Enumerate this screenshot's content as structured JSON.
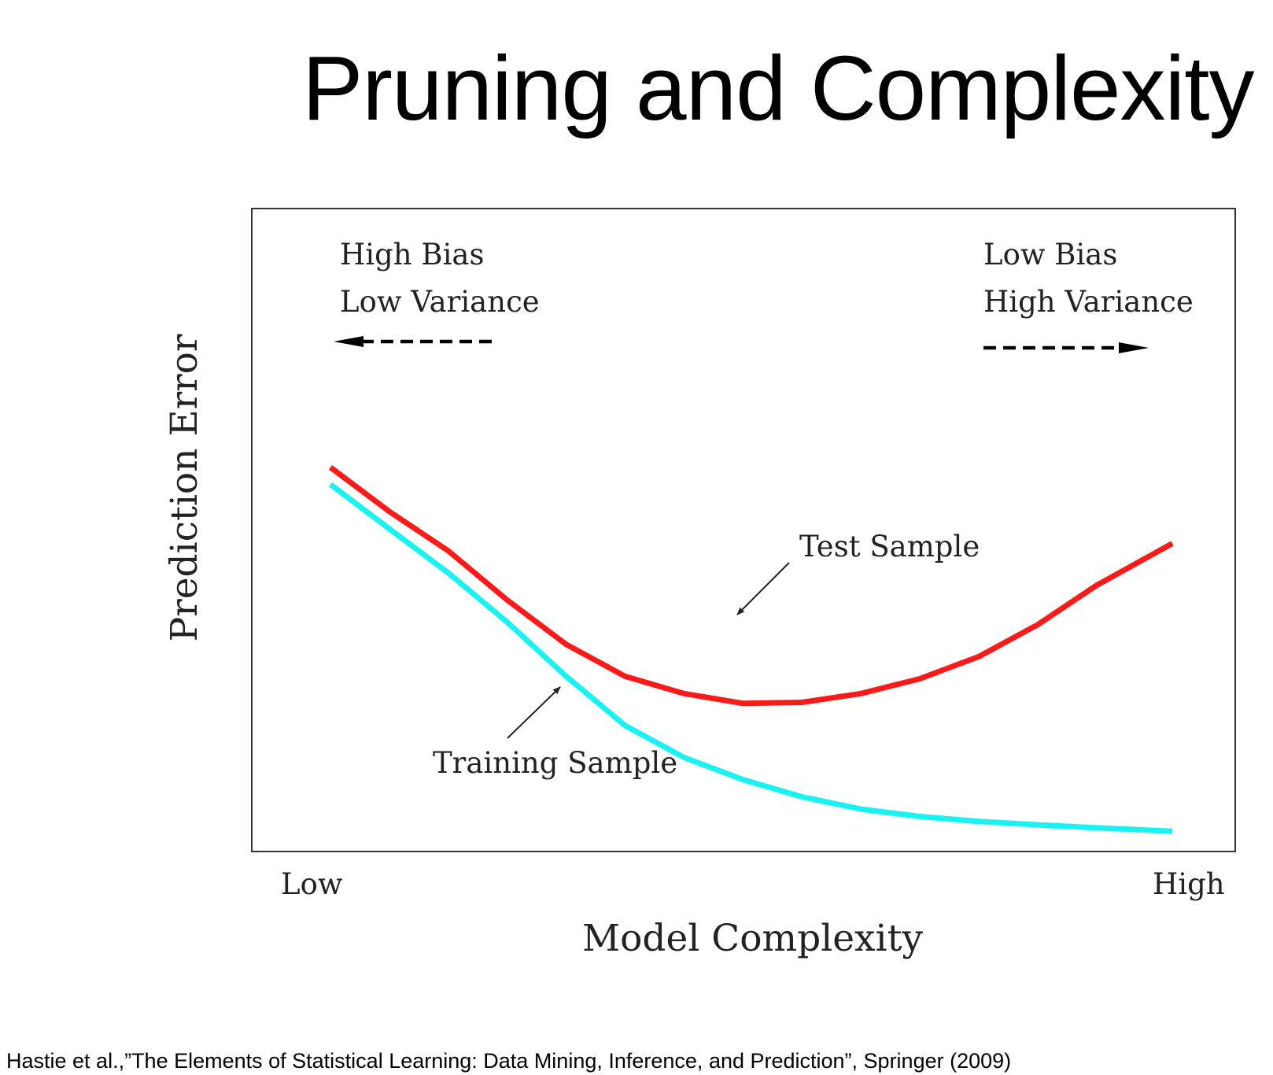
{
  "title": "Pruning and Complexity",
  "citation": "Hastie et al.,”The Elements of Statistical Learning: Data Mining, Inference, and Prediction”, Springer (2009)",
  "chart_data": {
    "type": "line",
    "title": "",
    "xlabel": "Model Complexity",
    "ylabel": "Prediction Error",
    "x_tick_labels": [
      "Low",
      "High"
    ],
    "xlim": [
      0,
      1
    ],
    "ylim": [
      0,
      1
    ],
    "grid": false,
    "annotations": {
      "left_top": "High Bias",
      "left_bottom": "Low Variance",
      "right_top": "Low Bias",
      "right_bottom": "High Variance",
      "test_label": "Test Sample",
      "train_label": "Training Sample"
    },
    "series": [
      {
        "name": "Test Sample",
        "color": "#ff1a1a",
        "x": [
          0.0,
          0.07,
          0.14,
          0.21,
          0.28,
          0.35,
          0.42,
          0.49,
          0.56,
          0.63,
          0.7,
          0.77,
          0.84,
          0.91,
          1.0
        ],
        "y": [
          0.77,
          0.68,
          0.6,
          0.5,
          0.41,
          0.345,
          0.31,
          0.29,
          0.292,
          0.31,
          0.34,
          0.385,
          0.45,
          0.53,
          0.615
        ]
      },
      {
        "name": "Training Sample",
        "color": "#19f2f2",
        "x": [
          0.0,
          0.07,
          0.14,
          0.21,
          0.28,
          0.35,
          0.42,
          0.49,
          0.56,
          0.63,
          0.7,
          0.77,
          0.84,
          0.91,
          1.0
        ],
        "y": [
          0.735,
          0.645,
          0.555,
          0.455,
          0.345,
          0.245,
          0.18,
          0.135,
          0.1,
          0.075,
          0.06,
          0.05,
          0.043,
          0.037,
          0.03
        ]
      }
    ]
  }
}
